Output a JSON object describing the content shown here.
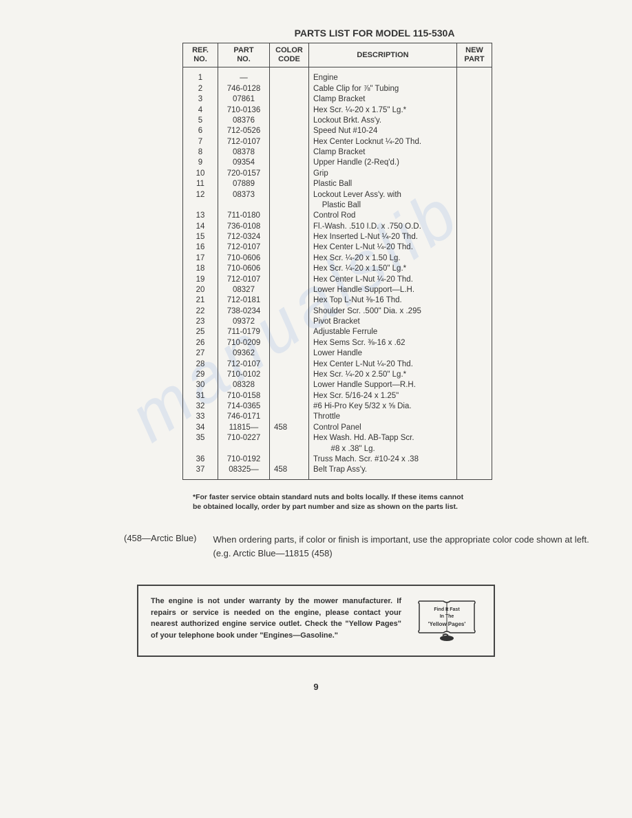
{
  "title": "PARTS LIST FOR MODEL 115-530A",
  "table": {
    "headers": {
      "ref": "REF.\nNO.",
      "part": "PART\nNO.",
      "color": "COLOR\nCODE",
      "desc": "DESCRIPTION",
      "new": "NEW\nPART"
    },
    "rows": [
      {
        "ref": "1",
        "part": "—",
        "color": "",
        "desc": "Engine"
      },
      {
        "ref": "2",
        "part": "746-0128",
        "color": "",
        "desc": "Cable Clip for ⅞\" Tubing"
      },
      {
        "ref": "3",
        "part": "07861",
        "color": "",
        "desc": "Clamp Bracket"
      },
      {
        "ref": "4",
        "part": "710-0136",
        "color": "",
        "desc": "Hex Scr. ¼-20 x 1.75\" Lg.*"
      },
      {
        "ref": "5",
        "part": "08376",
        "color": "",
        "desc": "Lockout Brkt. Ass'y."
      },
      {
        "ref": "6",
        "part": "712-0526",
        "color": "",
        "desc": "Speed Nut #10-24"
      },
      {
        "ref": "7",
        "part": "712-0107",
        "color": "",
        "desc": "Hex Center Locknut ¼-20 Thd."
      },
      {
        "ref": "8",
        "part": "08378",
        "color": "",
        "desc": "Clamp Bracket"
      },
      {
        "ref": "9",
        "part": "09354",
        "color": "",
        "desc": "Upper Handle (2-Req'd.)"
      },
      {
        "ref": "10",
        "part": "720-0157",
        "color": "",
        "desc": "Grip"
      },
      {
        "ref": "11",
        "part": "07889",
        "color": "",
        "desc": "Plastic Ball"
      },
      {
        "ref": "12",
        "part": "08373",
        "color": "",
        "desc": "Lockout Lever Ass'y. with"
      },
      {
        "ref": "",
        "part": "",
        "color": "",
        "desc": "    Plastic Ball"
      },
      {
        "ref": "13",
        "part": "711-0180",
        "color": "",
        "desc": "Control Rod"
      },
      {
        "ref": "14",
        "part": "736-0108",
        "color": "",
        "desc": "Fl.-Wash. .510 I.D. x .750 O.D."
      },
      {
        "ref": "15",
        "part": "712-0324",
        "color": "",
        "desc": "Hex Inserted L-Nut ¼-20 Thd."
      },
      {
        "ref": "16",
        "part": "712-0107",
        "color": "",
        "desc": "Hex Center L-Nut ¼-20 Thd."
      },
      {
        "ref": "17",
        "part": "710-0606",
        "color": "",
        "desc": "Hex Scr. ¼-20 x 1.50 Lg."
      },
      {
        "ref": "18",
        "part": "710-0606",
        "color": "",
        "desc": "Hex Scr. ¼-20 x 1.50\" Lg.*"
      },
      {
        "ref": "19",
        "part": "712-0107",
        "color": "",
        "desc": "Hex Center L-Nut ¼-20 Thd."
      },
      {
        "ref": "20",
        "part": "08327",
        "color": "",
        "desc": "Lower Handle Support—L.H."
      },
      {
        "ref": "21",
        "part": "712-0181",
        "color": "",
        "desc": "Hex Top L-Nut ⅜-16 Thd."
      },
      {
        "ref": "22",
        "part": "738-0234",
        "color": "",
        "desc": "Shoulder Scr. .500\" Dia. x .295"
      },
      {
        "ref": "23",
        "part": "09372",
        "color": "",
        "desc": "Pivot Bracket"
      },
      {
        "ref": "25",
        "part": "711-0179",
        "color": "",
        "desc": "Adjustable Ferrule"
      },
      {
        "ref": "26",
        "part": "710-0209",
        "color": "",
        "desc": "Hex Sems Scr. ⅜-16 x .62"
      },
      {
        "ref": "27",
        "part": "09362",
        "color": "",
        "desc": "Lower Handle"
      },
      {
        "ref": "28",
        "part": "712-0107",
        "color": "",
        "desc": "Hex Center L-Nut ¼-20 Thd."
      },
      {
        "ref": "29",
        "part": "710-0102",
        "color": "",
        "desc": "Hex Scr. ¼-20 x 2.50\" Lg.*"
      },
      {
        "ref": "30",
        "part": "08328",
        "color": "",
        "desc": "Lower Handle Support—R.H."
      },
      {
        "ref": "31",
        "part": "710-0158",
        "color": "",
        "desc": "Hex Scr. 5/16-24 x 1.25\""
      },
      {
        "ref": "32",
        "part": "714-0365",
        "color": "",
        "desc": "#6 Hi-Pro Key 5/32 x ⅝ Dia."
      },
      {
        "ref": "33",
        "part": "746-0171",
        "color": "",
        "desc": "Throttle"
      },
      {
        "ref": "34",
        "part": "11815—",
        "color": "458",
        "desc": "Control Panel"
      },
      {
        "ref": "35",
        "part": "710-0227",
        "color": "",
        "desc": "Hex Wash. Hd. AB-Tapp Scr."
      },
      {
        "ref": "",
        "part": "",
        "color": "",
        "desc": "        #8 x .38\" Lg."
      },
      {
        "ref": "36",
        "part": "710-0192",
        "color": "",
        "desc": "Truss Mach. Scr. #10-24 x .38"
      },
      {
        "ref": "37",
        "part": "08325—",
        "color": "458",
        "desc": "Belt Trap Ass'y."
      }
    ]
  },
  "footnote": "*For faster service obtain standard nuts and bolts locally. If these items cannot be obtained locally, order by part number and size as shown on the parts list.",
  "colorCode": {
    "label": "(458—Arctic Blue)",
    "text": "When ordering parts, if color or finish is important, use the appropriate color code shown at left. (e.g. Arctic Blue—11815 (458)"
  },
  "warranty": {
    "text": "The engine is not under warranty by the mower manufacturer. If repairs or service is needed on the engine, please contact your nearest authorized engine service outlet. Check the \"Yellow Pages\" of your telephone book under \"Engines—Gasoline.\"",
    "yp_line1": "Find It Fast",
    "yp_line2": "In The",
    "yp_line3": "'Yellow Pages'"
  },
  "pageNumber": "9"
}
